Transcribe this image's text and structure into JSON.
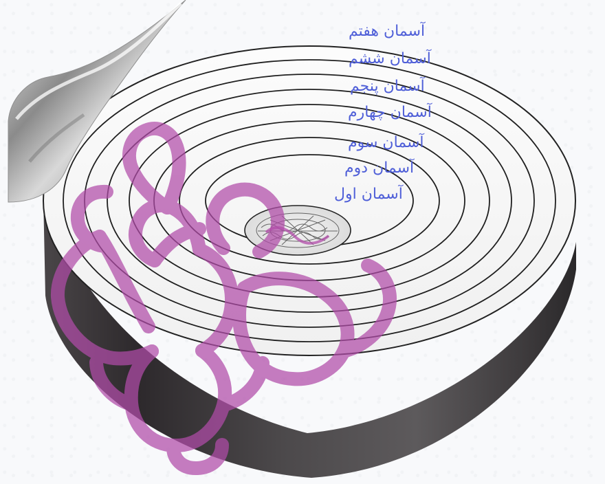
{
  "diagram": {
    "labels": [
      "آسمان هفتم",
      "آسمان ششم",
      "آسمان پنجم",
      "آسمان چهارم",
      "آسمان سوم",
      "آسمان دوم",
      "آسمان اول"
    ]
  },
  "colors": {
    "label_text": "#4f5fd8",
    "watermark": "#b14ca9",
    "disk_side_dark": "#2e2a2d",
    "disk_side_mid": "#5f5c5f",
    "ring_stroke": "#1f1f1f"
  },
  "icons": {
    "page_curl": "page-curl-icon",
    "center_earth": "earth-center-icon",
    "watermark_logo": "watermark-logo-icon"
  }
}
